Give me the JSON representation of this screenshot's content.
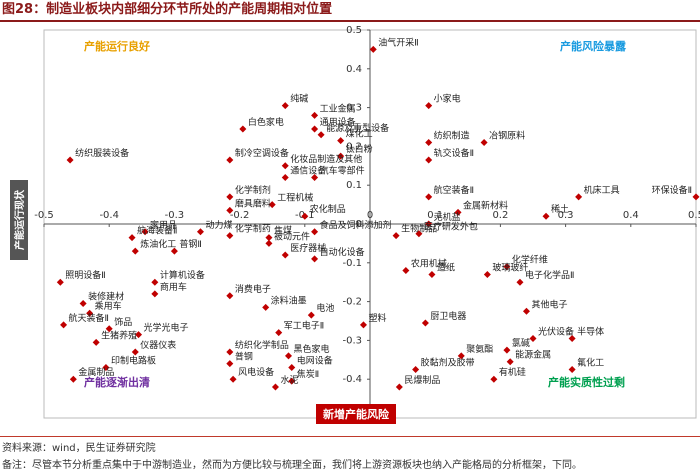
{
  "title": "图28：制造业板块内部细分环节所处的产能周期相对位置",
  "source": "资料来源：wind，民生证券研究院",
  "note": "备注：尽管本节分析重点集中于中游制造业，然而为方便比较与梳理全面，我们将上游资源板块也纳入产能格局的分析框架，下同。",
  "colors": {
    "point": "#c00000",
    "good": "#e8a000",
    "risk": "#1a9be0",
    "clear": "#7030a0",
    "overcap": "#00a050",
    "axis_label_bg": "#c00000",
    "ylabel_bg": "#555555"
  },
  "chart_data": {
    "type": "scatter",
    "xlabel": "新增产能风险",
    "ylabel": "产能运行现状",
    "xlim": [
      -0.5,
      0.5
    ],
    "ylim": [
      -0.5,
      0.5
    ],
    "xticks": [
      "-0.5",
      "-0.4",
      "-0.3",
      "-0.2",
      "-0.1",
      "0",
      "0.1",
      "0.2",
      "0.3",
      "0.4",
      "0.5"
    ],
    "yticks": [
      "0.5",
      "0.4",
      "0.3",
      "0.2",
      "0.1",
      "0",
      "-0.1",
      "-0.2",
      "-0.3",
      "-0.4",
      "-0.5"
    ],
    "quadrants": {
      "top_left": "产能运行良好",
      "top_right": "产能风险暴露",
      "bottom_left": "产能逐渐出清",
      "bottom_right": "产能实质性过剩"
    },
    "points": [
      {
        "name": "油气开采Ⅱ",
        "x": 0.005,
        "y": 0.45
      },
      {
        "name": "纯碱",
        "x": -0.13,
        "y": 0.305
      },
      {
        "name": "工业金属",
        "x": -0.085,
        "y": 0.28
      },
      {
        "name": "白色家电",
        "x": -0.195,
        "y": 0.245
      },
      {
        "name": "通用设备",
        "x": -0.085,
        "y": 0.245
      },
      {
        "name": "能源及重型设备",
        "x": -0.075,
        "y": 0.23
      },
      {
        "name": "煤化工",
        "x": -0.045,
        "y": 0.215
      },
      {
        "name": "钛白粉",
        "x": -0.045,
        "y": 0.175
      },
      {
        "name": "小家电",
        "x": 0.09,
        "y": 0.305
      },
      {
        "name": "纺织制造",
        "x": 0.09,
        "y": 0.21
      },
      {
        "name": "冶钢原料",
        "x": 0.175,
        "y": 0.21
      },
      {
        "name": "轨交设备Ⅱ",
        "x": 0.09,
        "y": 0.165
      },
      {
        "name": "环保设备Ⅱ",
        "x": 0.5,
        "y": 0.07
      },
      {
        "name": "纺织服装设备",
        "x": -0.46,
        "y": 0.165
      },
      {
        "name": "制冷空调设备",
        "x": -0.215,
        "y": 0.165
      },
      {
        "name": "化妆品制造及其他",
        "x": -0.13,
        "y": 0.15
      },
      {
        "name": "通信设备",
        "x": -0.13,
        "y": 0.12
      },
      {
        "name": "汽车零部件",
        "x": -0.085,
        "y": 0.12
      },
      {
        "name": "化学制剂",
        "x": -0.215,
        "y": 0.07
      },
      {
        "name": "工程机械",
        "x": -0.15,
        "y": 0.05
      },
      {
        "name": "磨具磨料",
        "x": -0.215,
        "y": 0.035
      },
      {
        "name": "农化制品",
        "x": -0.1,
        "y": 0.02
      },
      {
        "name": "航空装备Ⅱ",
        "x": 0.09,
        "y": 0.07
      },
      {
        "name": "金属新材料",
        "x": 0.135,
        "y": 0.03
      },
      {
        "name": "稀土",
        "x": 0.27,
        "y": 0.02
      },
      {
        "name": "机床工具",
        "x": 0.32,
        "y": 0.07
      },
      {
        "name": "无机盐",
        "x": 0.09,
        "y": 0
      },
      {
        "name": "医疗研发外包",
        "x": 0.075,
        "y": -0.025
      },
      {
        "name": "家用品",
        "x": -0.345,
        "y": -0.02
      },
      {
        "name": "动力煤",
        "x": -0.26,
        "y": -0.02
      },
      {
        "name": "化学制药",
        "x": -0.215,
        "y": -0.03
      },
      {
        "name": "焦煤",
        "x": -0.155,
        "y": -0.035
      },
      {
        "name": "食品及饲料添加剂",
        "x": -0.085,
        "y": -0.02
      },
      {
        "name": "被动元件",
        "x": -0.155,
        "y": -0.05
      },
      {
        "name": "生物制品",
        "x": 0.04,
        "y": -0.03
      },
      {
        "name": "航海装备Ⅱ",
        "x": -0.365,
        "y": -0.035
      },
      {
        "name": "炼油化工",
        "x": -0.36,
        "y": -0.07
      },
      {
        "name": "普钢Ⅱ",
        "x": -0.3,
        "y": -0.07
      },
      {
        "name": "医疗器械",
        "x": -0.13,
        "y": -0.08
      },
      {
        "name": "自动化设备",
        "x": -0.085,
        "y": -0.09
      },
      {
        "name": "农用机械",
        "x": 0.055,
        "y": -0.12
      },
      {
        "name": "造纸",
        "x": 0.095,
        "y": -0.13
      },
      {
        "name": "化学纤维",
        "x": 0.21,
        "y": -0.11
      },
      {
        "name": "玻璃玻纤",
        "x": 0.18,
        "y": -0.13
      },
      {
        "name": "电子化学品Ⅱ",
        "x": 0.23,
        "y": -0.15
      },
      {
        "name": "照明设备Ⅱ",
        "x": -0.475,
        "y": -0.15
      },
      {
        "name": "计算机设备",
        "x": -0.33,
        "y": -0.15
      },
      {
        "name": "商用车",
        "x": -0.33,
        "y": -0.18
      },
      {
        "name": "消费电子",
        "x": -0.215,
        "y": -0.185
      },
      {
        "name": "装修建材",
        "x": -0.44,
        "y": -0.205
      },
      {
        "name": "乘用车",
        "x": -0.43,
        "y": -0.23
      },
      {
        "name": "涂料油墨",
        "x": -0.16,
        "y": -0.215
      },
      {
        "name": "电池",
        "x": -0.09,
        "y": -0.235
      },
      {
        "name": "塑料",
        "x": -0.01,
        "y": -0.26
      },
      {
        "name": "厨卫电器",
        "x": 0.085,
        "y": -0.255
      },
      {
        "name": "其他电子",
        "x": 0.24,
        "y": -0.225
      },
      {
        "name": "航天装备Ⅱ",
        "x": -0.47,
        "y": -0.26
      },
      {
        "name": "饰品",
        "x": -0.4,
        "y": -0.27
      },
      {
        "name": "光学光电子",
        "x": -0.355,
        "y": -0.285
      },
      {
        "name": "军工电子Ⅱ",
        "x": -0.14,
        "y": -0.28
      },
      {
        "name": "光伏设备",
        "x": 0.25,
        "y": -0.295
      },
      {
        "name": "半导体",
        "x": 0.31,
        "y": -0.295
      },
      {
        "name": "生猪养殖",
        "x": -0.42,
        "y": -0.305
      },
      {
        "name": "仪器仪表",
        "x": -0.36,
        "y": -0.33
      },
      {
        "name": "纺织化学制品",
        "x": -0.215,
        "y": -0.33
      },
      {
        "name": "黑色家电",
        "x": -0.125,
        "y": -0.34
      },
      {
        "name": "氯碱",
        "x": 0.21,
        "y": -0.325
      },
      {
        "name": "聚氨酯",
        "x": 0.14,
        "y": -0.34
      },
      {
        "name": "能源金属",
        "x": 0.215,
        "y": -0.355
      },
      {
        "name": "普钢",
        "x": -0.215,
        "y": -0.36
      },
      {
        "name": "印制电路板",
        "x": -0.405,
        "y": -0.37
      },
      {
        "name": "电网设备",
        "x": -0.12,
        "y": -0.37
      },
      {
        "name": "氟化工",
        "x": 0.31,
        "y": -0.375
      },
      {
        "name": "胶黏剂及胶带",
        "x": 0.07,
        "y": -0.375
      },
      {
        "name": "有机硅",
        "x": 0.19,
        "y": -0.4
      },
      {
        "name": "金属制品",
        "x": -0.455,
        "y": -0.4
      },
      {
        "name": "风电设备",
        "x": -0.21,
        "y": -0.4
      },
      {
        "name": "焦炭Ⅱ",
        "x": -0.12,
        "y": -0.405
      },
      {
        "name": "水泥",
        "x": -0.145,
        "y": -0.42
      },
      {
        "name": "民爆制品",
        "x": 0.045,
        "y": -0.42
      }
    ]
  }
}
